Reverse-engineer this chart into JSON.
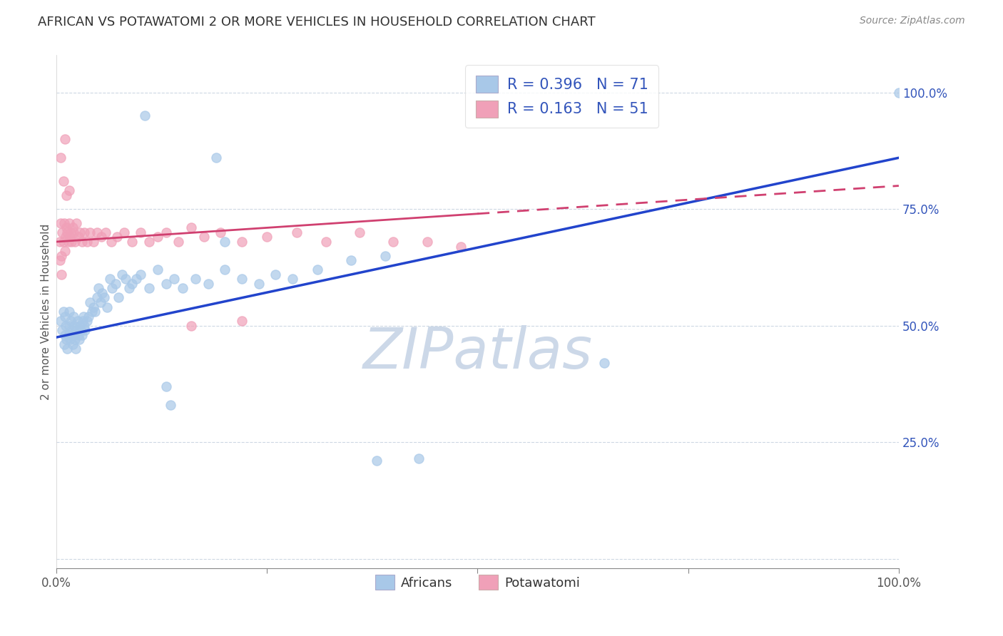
{
  "title": "AFRICAN VS POTAWATOMI 2 OR MORE VEHICLES IN HOUSEHOLD CORRELATION CHART",
  "source": "Source: ZipAtlas.com",
  "ylabel": "2 or more Vehicles in Household",
  "y_tick_labels": [
    "",
    "25.0%",
    "50.0%",
    "75.0%",
    "100.0%"
  ],
  "y_tick_positions": [
    0.0,
    0.25,
    0.5,
    0.75,
    1.0
  ],
  "xlim": [
    0.0,
    1.0
  ],
  "ylim": [
    -0.02,
    1.08
  ],
  "legend_R1": "0.396",
  "legend_N1": "71",
  "legend_R2": "0.163",
  "legend_N2": "51",
  "africans_color": "#a8c8e8",
  "potawatomi_color": "#f0a0b8",
  "trend_african_color": "#2244cc",
  "trend_potawatomi_color": "#d04070",
  "watermark": "ZIPatlas",
  "watermark_color": "#ccd8e8",
  "africans_scatter_x": [
    0.005,
    0.007,
    0.008,
    0.009,
    0.01,
    0.01,
    0.011,
    0.012,
    0.013,
    0.014,
    0.015,
    0.015,
    0.016,
    0.017,
    0.018,
    0.019,
    0.02,
    0.02,
    0.021,
    0.022,
    0.023,
    0.024,
    0.025,
    0.026,
    0.027,
    0.028,
    0.029,
    0.03,
    0.031,
    0.032,
    0.033,
    0.034,
    0.036,
    0.038,
    0.04,
    0.042,
    0.044,
    0.046,
    0.048,
    0.05,
    0.052,
    0.054,
    0.057,
    0.06,
    0.063,
    0.066,
    0.07,
    0.074,
    0.078,
    0.082,
    0.086,
    0.09,
    0.095,
    0.1,
    0.11,
    0.12,
    0.13,
    0.14,
    0.15,
    0.165,
    0.18,
    0.2,
    0.22,
    0.24,
    0.26,
    0.28,
    0.31,
    0.35,
    0.39,
    0.65,
    1.0
  ],
  "africans_scatter_y": [
    0.51,
    0.49,
    0.53,
    0.46,
    0.52,
    0.48,
    0.5,
    0.47,
    0.45,
    0.48,
    0.53,
    0.5,
    0.47,
    0.51,
    0.49,
    0.46,
    0.52,
    0.48,
    0.5,
    0.47,
    0.45,
    0.49,
    0.51,
    0.48,
    0.47,
    0.5,
    0.49,
    0.48,
    0.51,
    0.52,
    0.5,
    0.49,
    0.51,
    0.52,
    0.55,
    0.53,
    0.54,
    0.53,
    0.56,
    0.58,
    0.55,
    0.57,
    0.56,
    0.54,
    0.6,
    0.58,
    0.59,
    0.56,
    0.61,
    0.6,
    0.58,
    0.59,
    0.6,
    0.61,
    0.58,
    0.62,
    0.59,
    0.6,
    0.58,
    0.6,
    0.59,
    0.62,
    0.6,
    0.59,
    0.61,
    0.6,
    0.62,
    0.64,
    0.65,
    0.42,
    1.0
  ],
  "africans_outlier_x": [
    0.38,
    0.43,
    0.105,
    0.19,
    0.2,
    0.13,
    0.135
  ],
  "africans_outlier_y": [
    0.21,
    0.215,
    0.95,
    0.86,
    0.68,
    0.37,
    0.33
  ],
  "potawatomi_scatter_x": [
    0.004,
    0.005,
    0.006,
    0.007,
    0.008,
    0.009,
    0.01,
    0.011,
    0.012,
    0.013,
    0.014,
    0.015,
    0.016,
    0.017,
    0.018,
    0.019,
    0.02,
    0.022,
    0.024,
    0.026,
    0.028,
    0.03,
    0.033,
    0.036,
    0.04,
    0.044,
    0.048,
    0.053,
    0.058,
    0.065,
    0.072,
    0.08,
    0.09,
    0.1,
    0.11,
    0.12,
    0.13,
    0.145,
    0.16,
    0.175,
    0.195,
    0.22,
    0.25,
    0.285,
    0.32,
    0.36,
    0.4,
    0.44,
    0.48,
    0.16,
    0.22
  ],
  "potawatomi_scatter_y": [
    0.68,
    0.72,
    0.65,
    0.7,
    0.68,
    0.72,
    0.66,
    0.69,
    0.71,
    0.7,
    0.68,
    0.72,
    0.69,
    0.7,
    0.68,
    0.71,
    0.7,
    0.68,
    0.72,
    0.69,
    0.7,
    0.68,
    0.7,
    0.68,
    0.7,
    0.68,
    0.7,
    0.69,
    0.7,
    0.68,
    0.69,
    0.7,
    0.68,
    0.7,
    0.68,
    0.69,
    0.7,
    0.68,
    0.71,
    0.69,
    0.7,
    0.68,
    0.69,
    0.7,
    0.68,
    0.7,
    0.68,
    0.68,
    0.67,
    0.5,
    0.51
  ],
  "potawatomi_outlier_x": [
    0.005,
    0.008,
    0.01,
    0.012,
    0.015,
    0.004,
    0.006
  ],
  "potawatomi_outlier_y": [
    0.86,
    0.81,
    0.9,
    0.78,
    0.79,
    0.64,
    0.61
  ],
  "african_trend_x0": 0.0,
  "african_trend_y0": 0.475,
  "african_trend_x1": 1.0,
  "african_trend_y1": 0.86,
  "potawatomi_trend_solid_x0": 0.0,
  "potawatomi_trend_solid_y0": 0.68,
  "potawatomi_trend_solid_x1": 0.5,
  "potawatomi_trend_solid_y1": 0.74,
  "potawatomi_trend_dash_x0": 0.5,
  "potawatomi_trend_dash_y0": 0.74,
  "potawatomi_trend_dash_x1": 1.0,
  "potawatomi_trend_dash_y1": 0.8
}
